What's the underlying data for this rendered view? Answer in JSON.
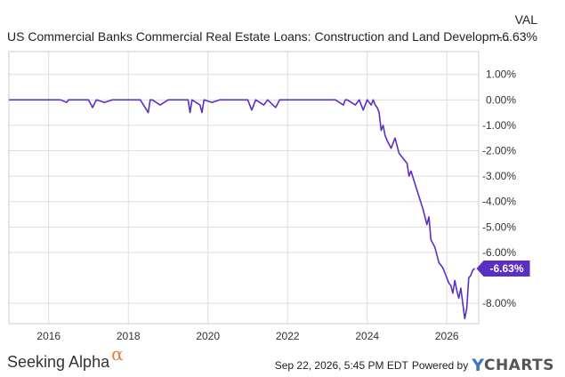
{
  "header": {
    "title": "US Commercial Banks Commercial Real Estate Loans: Construction and Land Developm...",
    "val_label": "VAL",
    "val_value": "-6.63%"
  },
  "footer": {
    "brand": "Seeking Alpha",
    "brand_symbol": "α",
    "timestamp": "Sep 22, 2026, 5:45 PM EDT",
    "powered_by": "Powered by",
    "ycharts_y": "Y",
    "ycharts_rest": "CHARTS"
  },
  "colors": {
    "line": "#5b2fc4",
    "label_bg": "#5b2fc4",
    "grid": "#dddddd",
    "alpha_orange": "#e8803a",
    "ycharts_blue": "#3a75c4"
  },
  "chart_data": {
    "type": "line",
    "title": "US Commercial Banks Commercial Real Estate Loans: Construction and Land Developm...",
    "xlabel": "",
    "ylabel": "",
    "x_ticks": [
      2016,
      2018,
      2020,
      2022,
      2024,
      2026
    ],
    "x_tick_labels": [
      "2016",
      "2018",
      "2020",
      "2022",
      "2024",
      "2026"
    ],
    "xlim": [
      2015.0,
      2026.8
    ],
    "y_ticks": [
      1,
      0,
      -1,
      -2,
      -3,
      -4,
      -5,
      -6,
      -8
    ],
    "y_tick_labels": [
      "1.00%",
      "0.00%",
      "-1.00%",
      "-2.00%",
      "-3.00%",
      "-4.00%",
      "-5.00%",
      "-6.00%",
      "-8.00%"
    ],
    "ylim": [
      -8.8,
      1.9
    ],
    "grid": true,
    "last_value_label": "-6.63%",
    "series": [
      {
        "name": "",
        "x": [
          2015.0,
          2015.8,
          2016.0,
          2016.3,
          2016.45,
          2016.5,
          2016.7,
          2017.0,
          2017.1,
          2017.2,
          2017.4,
          2017.6,
          2017.9,
          2018.0,
          2018.3,
          2018.5,
          2018.55,
          2018.6,
          2018.8,
          2019.0,
          2019.2,
          2019.5,
          2019.55,
          2019.6,
          2019.8,
          2019.85,
          2019.9,
          2020.1,
          2020.3,
          2020.5,
          2020.8,
          2021.0,
          2021.1,
          2021.2,
          2021.4,
          2021.5,
          2021.7,
          2021.8,
          2022.0,
          2022.3,
          2022.6,
          2022.9,
          2023.2,
          2023.4,
          2023.45,
          2023.5,
          2023.7,
          2023.8,
          2023.9,
          2024.0,
          2024.1,
          2024.15,
          2024.2,
          2024.25,
          2024.3,
          2024.35,
          2024.4,
          2024.45,
          2024.5,
          2024.6,
          2024.7,
          2024.8,
          2024.9,
          2025.0,
          2025.05,
          2025.1,
          2025.2,
          2025.3,
          2025.4,
          2025.5,
          2025.55,
          2025.6,
          2025.7,
          2025.8,
          2025.9,
          2026.0,
          2026.05,
          2026.1,
          2026.15,
          2026.2,
          2026.25,
          2026.3,
          2026.35,
          2026.4,
          2026.45,
          2026.5,
          2026.55,
          2026.6,
          2026.65,
          2026.7
        ],
        "y": [
          0,
          0,
          0,
          0,
          -0.1,
          0,
          0,
          0,
          -0.3,
          0,
          -0.1,
          0,
          0,
          0,
          0,
          -0.5,
          0,
          0,
          -0.2,
          0,
          0,
          0,
          -0.5,
          0,
          -0.2,
          -0.5,
          0,
          -0.1,
          0,
          0,
          0,
          0,
          -0.4,
          0,
          -0.2,
          0,
          -0.3,
          0,
          0,
          0,
          0,
          0,
          0,
          -0.2,
          0,
          0,
          -0.2,
          0,
          -0.4,
          0,
          -0.2,
          0,
          -0.2,
          -0.3,
          -0.5,
          -1.2,
          -1.0,
          -1.4,
          -1.6,
          -1.9,
          -1.5,
          -2.1,
          -2.3,
          -2.5,
          -3.0,
          -2.8,
          -3.3,
          -3.8,
          -4.3,
          -4.9,
          -4.6,
          -5.5,
          -5.8,
          -6.4,
          -6.6,
          -7.0,
          -7.2,
          -7.3,
          -7.6,
          -7.1,
          -7.5,
          -7.8,
          -7.4,
          -8.0,
          -8.6,
          -8.2,
          -7.0,
          -6.9,
          -6.7,
          -6.63
        ]
      }
    ]
  }
}
